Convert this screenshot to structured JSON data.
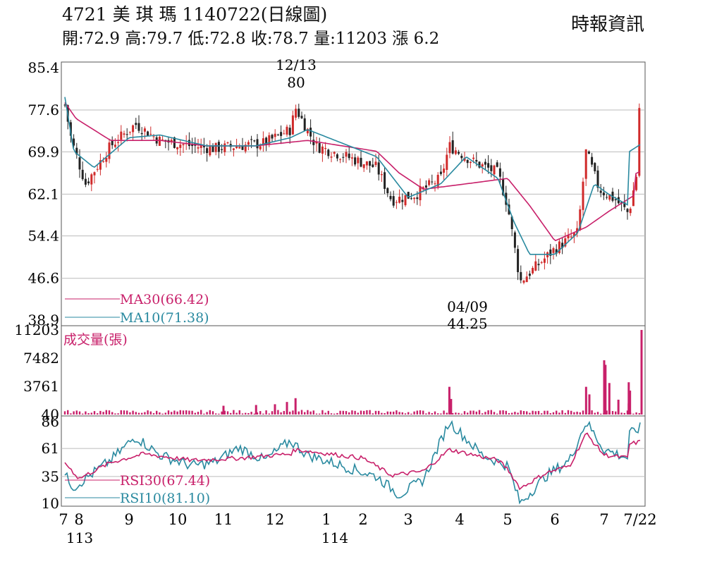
{
  "header": {
    "title": "4721 美 琪 瑪 1140722(日線圖)",
    "stats": "開:72.9 高:79.7 低:72.8 收:78.7 量:11203 漲 6.2",
    "brand": "時報資訊"
  },
  "colors": {
    "ma30": "#c8206a",
    "ma10": "#2a8aa0",
    "up": "#d02a2a",
    "down": "#222222",
    "volume": "#c8206a",
    "grid": "#bbbbbb"
  },
  "chart_data": [
    {
      "type": "candlestick",
      "title": "4721 美 琪 瑪 1140722(日線圖)",
      "y_ticks": [
        "85.4",
        "77.6",
        "69.9",
        "62.1",
        "54.4",
        "46.6",
        "38.9"
      ],
      "ylim": [
        38.9,
        85.4
      ],
      "annotations": [
        {
          "date": "12/13",
          "value": "80",
          "label_date": "12/13",
          "label_value": "80"
        },
        {
          "date": "04/09",
          "value": "44.25",
          "label_date": "04/09",
          "label_value": "44.25"
        }
      ],
      "legend": [
        {
          "name": "MA30",
          "label": "MA30(66.42)",
          "value": 66.42
        },
        {
          "name": "MA10",
          "label": "MA10(71.38)",
          "value": 71.38
        }
      ],
      "months": [
        "7",
        "8",
        "9",
        "10",
        "11",
        "12",
        "1",
        "2",
        "3",
        "4",
        "5",
        "6",
        "7",
        "7/22"
      ],
      "year_labels": [
        "113",
        "114"
      ],
      "keypoints": [
        [
          "7/1",
          78.5
        ],
        [
          "7/15",
          72
        ],
        [
          "8/5",
          64
        ],
        [
          "8/20",
          71
        ],
        [
          "9/5",
          75
        ],
        [
          "9/20",
          72
        ],
        [
          "10/10",
          71
        ],
        [
          "10/25",
          70.5
        ],
        [
          "11/10",
          71
        ],
        [
          "11/25",
          71.5
        ],
        [
          "12/10",
          74
        ],
        [
          "12/13",
          78
        ],
        [
          "12/25",
          71
        ],
        [
          "1/10",
          67
        ],
        [
          "1/20",
          61
        ],
        [
          "2/5",
          62
        ],
        [
          "2/20",
          65
        ],
        [
          "2/25",
          71
        ],
        [
          "3/10",
          68
        ],
        [
          "3/25",
          66
        ],
        [
          "4/1",
          60
        ],
        [
          "4/9",
          46
        ],
        [
          "4/20",
          49
        ],
        [
          "5/1",
          52
        ],
        [
          "5/15",
          55
        ],
        [
          "5/20",
          70
        ],
        [
          "5/28",
          63
        ],
        [
          "6/10",
          61
        ],
        [
          "6/20",
          58.5
        ],
        [
          "6/28",
          68
        ],
        [
          "7/10",
          71
        ],
        [
          "7/22",
          78.7
        ]
      ],
      "ma10_keypoints": [
        [
          "7/1",
          80
        ],
        [
          "7/20",
          70
        ],
        [
          "8/10",
          67
        ],
        [
          "9/1",
          72.5
        ],
        [
          "9/20",
          73
        ],
        [
          "10/20",
          71
        ],
        [
          "11/20",
          71
        ],
        [
          "12/10",
          72.5
        ],
        [
          "12/20",
          74
        ],
        [
          "1/10",
          69
        ],
        [
          "2/1",
          61.5
        ],
        [
          "2/20",
          64
        ],
        [
          "3/5",
          69
        ],
        [
          "3/25",
          65
        ],
        [
          "4/5",
          57
        ],
        [
          "4/15",
          51
        ],
        [
          "5/1",
          51
        ],
        [
          "5/15",
          55
        ],
        [
          "5/25",
          64
        ],
        [
          "6/5",
          62
        ],
        [
          "6/20",
          60
        ],
        [
          "7/1",
          67
        ],
        [
          "7/22",
          71.38
        ]
      ],
      "ma30_keypoints": [
        [
          "7/1",
          79
        ],
        [
          "7/25",
          76
        ],
        [
          "8/20",
          72
        ],
        [
          "9/20",
          72
        ],
        [
          "10/20",
          71
        ],
        [
          "11/20",
          71
        ],
        [
          "12/20",
          72
        ],
        [
          "1/10",
          70
        ],
        [
          "1/25",
          66
        ],
        [
          "2/10",
          63
        ],
        [
          "3/5",
          64
        ],
        [
          "4/1",
          65
        ],
        [
          "4/15",
          60
        ],
        [
          "5/1",
          53.5
        ],
        [
          "5/20",
          56
        ],
        [
          "6/5",
          59
        ],
        [
          "6/25",
          62
        ],
        [
          "7/10",
          64
        ],
        [
          "7/22",
          66.42
        ]
      ]
    },
    {
      "type": "bar",
      "title": "成交量(張)",
      "y_ticks": [
        "11203",
        "7482",
        "3761",
        "40"
      ],
      "ylim": [
        40,
        11203
      ],
      "spikes": [
        [
          "11/1",
          1200
        ],
        [
          "11/20",
          1300
        ],
        [
          "12/1",
          1400
        ],
        [
          "12/8",
          1700
        ],
        [
          "12/13",
          2200
        ],
        [
          "2/25",
          3700
        ],
        [
          "2/26",
          2100
        ],
        [
          "5/20",
          3700
        ],
        [
          "5/22",
          2700
        ],
        [
          "6/20",
          1500
        ],
        [
          "7/1",
          7200
        ],
        [
          "7/2",
          6600
        ],
        [
          "7/5",
          4200
        ],
        [
          "7/12",
          2000
        ],
        [
          "7/20",
          4300
        ],
        [
          "7/21",
          3200
        ],
        [
          "7/22",
          11203
        ]
      ]
    },
    {
      "type": "line",
      "y_ticks": [
        "86",
        "61",
        "35",
        "10"
      ],
      "ylim": [
        10,
        86
      ],
      "legend": [
        {
          "name": "RSI30",
          "label": "RSI30(67.44)",
          "value": 67.44
        },
        {
          "name": "RSI10",
          "label": "RSI10(81.10)",
          "value": 81.1
        }
      ],
      "rsi30_keypoints": [
        [
          "7/1",
          48
        ],
        [
          "8/1",
          33
        ],
        [
          "8/20",
          48
        ],
        [
          "9/10",
          56
        ],
        [
          "10/10",
          50
        ],
        [
          "11/10",
          52
        ],
        [
          "12/10",
          56
        ],
        [
          "12/13",
          60
        ],
        [
          "1/1",
          52
        ],
        [
          "1/20",
          36
        ],
        [
          "2/10",
          40
        ],
        [
          "2/25",
          60
        ],
        [
          "3/10",
          55
        ],
        [
          "3/25",
          50
        ],
        [
          "4/1",
          42
        ],
        [
          "4/9",
          24
        ],
        [
          "4/25",
          38
        ],
        [
          "5/10",
          45
        ],
        [
          "5/20",
          75
        ],
        [
          "6/1",
          55
        ],
        [
          "6/20",
          52
        ],
        [
          "7/1",
          60
        ],
        [
          "7/22",
          67.44
        ]
      ],
      "rsi10_keypoints": [
        [
          "7/1",
          36
        ],
        [
          "7/20",
          25
        ],
        [
          "8/20",
          50
        ],
        [
          "9/5",
          72
        ],
        [
          "9/20",
          55
        ],
        [
          "10/10",
          45
        ],
        [
          "10/25",
          48
        ],
        [
          "11/10",
          62
        ],
        [
          "11/25",
          50
        ],
        [
          "12/10",
          68
        ],
        [
          "12/20",
          55
        ],
        [
          "1/10",
          35
        ],
        [
          "1/25",
          18
        ],
        [
          "2/10",
          32
        ],
        [
          "2/25",
          86
        ],
        [
          "3/15",
          55
        ],
        [
          "3/31",
          45
        ],
        [
          "4/9",
          10
        ],
        [
          "4/25",
          35
        ],
        [
          "5/10",
          50
        ],
        [
          "5/20",
          86
        ],
        [
          "6/1",
          60
        ],
        [
          "6/20",
          52
        ],
        [
          "7/1",
          65
        ],
        [
          "7/15",
          70
        ],
        [
          "7/22",
          81.1
        ]
      ]
    }
  ]
}
